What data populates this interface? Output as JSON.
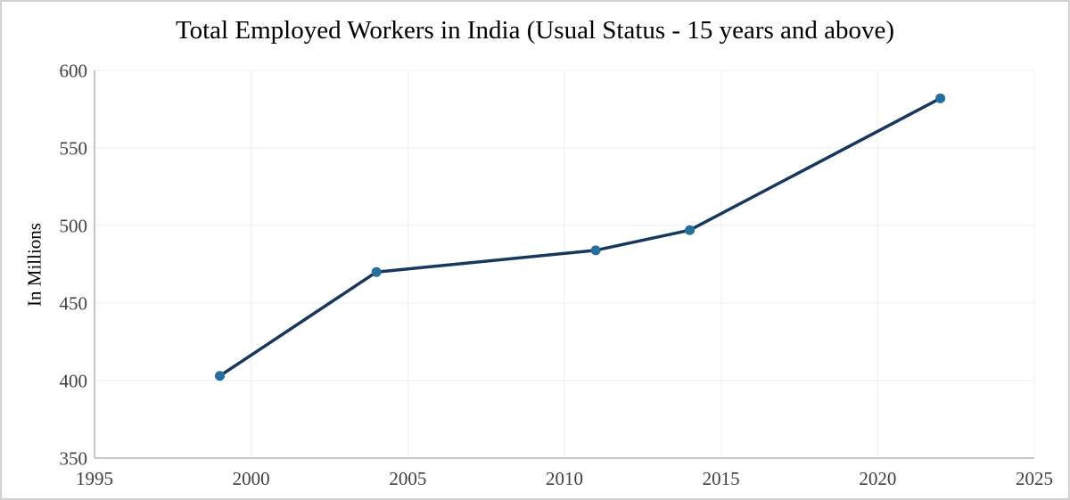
{
  "frame": {
    "background": "#ffffff",
    "border_color": "#d2d2d2"
  },
  "chart_data": {
    "type": "line",
    "title": "Total Employed Workers in India (Usual Status - 15 years and above)",
    "ylabel": "In Millions",
    "xlabel": "",
    "x": [
      1999,
      2004,
      2011,
      2014,
      2022
    ],
    "series": [
      {
        "name": "Total Employed Workers",
        "values": [
          403,
          470,
          484,
          497,
          582
        ]
      }
    ],
    "xlim": [
      1995,
      2025
    ],
    "ylim": [
      350,
      600
    ],
    "x_ticks": [
      1995,
      2000,
      2005,
      2010,
      2015,
      2020,
      2025
    ],
    "y_ticks": [
      350,
      400,
      450,
      500,
      550,
      600
    ],
    "grid": true,
    "legend_position": "none",
    "styles": {
      "line_color": "#17375e",
      "marker_color": "#266f9d",
      "grid_color": "#efefef",
      "axis_color": "#b3b3b3",
      "tick_label_color": "#404040",
      "title_color": "#000000",
      "line_width": 3.5,
      "marker_radius": 5.5
    }
  }
}
